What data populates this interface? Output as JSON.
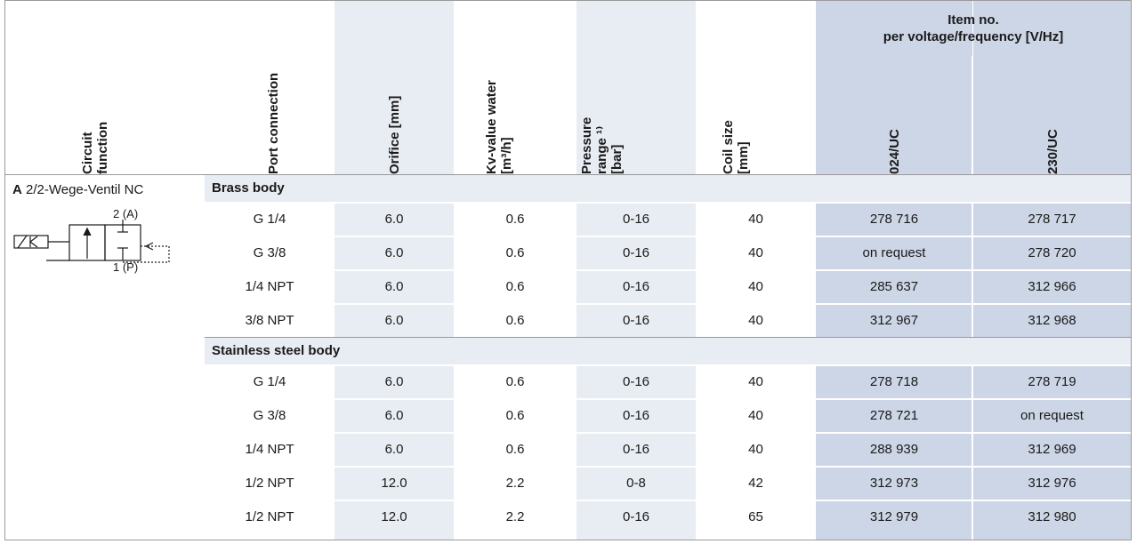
{
  "header": {
    "circuit_function": [
      "Circuit",
      "function"
    ],
    "port_connection": "Port connection",
    "orifice": "Orifice [mm]",
    "kv_value": [
      "Kv-value water",
      "[m³/h]"
    ],
    "pressure": [
      "Pressure",
      "range ¹⁾",
      "[bar]"
    ],
    "coil_size": [
      "Coil size",
      "[mm]"
    ],
    "item_no": [
      "Item no.",
      "per voltage/frequency [V/Hz]"
    ],
    "v024": "024/UC",
    "v230": "230/UC"
  },
  "circuit": {
    "letter": "A",
    "name": "2/2-Wege-Ventil NC",
    "port_a": "2 (A)",
    "port_p": "1 (P)"
  },
  "sections": [
    {
      "title": "Brass body",
      "rows": [
        {
          "port": "G 1/4",
          "orifice": "6.0",
          "kv": "0.6",
          "pressure": "0-16",
          "coil": "40",
          "v024": "278 716",
          "v230": "278 717"
        },
        {
          "port": "G 3/8",
          "orifice": "6.0",
          "kv": "0.6",
          "pressure": "0-16",
          "coil": "40",
          "v024": "on request",
          "v230": "278 720"
        },
        {
          "port": "1/4 NPT",
          "orifice": "6.0",
          "kv": "0.6",
          "pressure": "0-16",
          "coil": "40",
          "v024": "285 637",
          "v230": "312 966"
        },
        {
          "port": "3/8 NPT",
          "orifice": "6.0",
          "kv": "0.6",
          "pressure": "0-16",
          "coil": "40",
          "v024": "312 967",
          "v230": "312 968"
        }
      ]
    },
    {
      "title": "Stainless steel body",
      "rows": [
        {
          "port": "G 1/4",
          "orifice": "6.0",
          "kv": "0.6",
          "pressure": "0-16",
          "coil": "40",
          "v024": "278 718",
          "v230": "278 719"
        },
        {
          "port": "G 3/8",
          "orifice": "6.0",
          "kv": "0.6",
          "pressure": "0-16",
          "coil": "40",
          "v024": "278 721",
          "v230": "on request"
        },
        {
          "port": "1/4 NPT",
          "orifice": "6.0",
          "kv": "0.6",
          "pressure": "0-16",
          "coil": "40",
          "v024": "288 939",
          "v230": "312 969"
        },
        {
          "port": "1/2 NPT",
          "orifice": "12.0",
          "kv": "2.2",
          "pressure": "0-8",
          "coil": "42",
          "v024": "312 973",
          "v230": "312 976"
        },
        {
          "port": "1/2 NPT",
          "orifice": "12.0",
          "kv": "2.2",
          "pressure": "0-16",
          "coil": "65",
          "v024": "312 979",
          "v230": "312 980"
        }
      ]
    }
  ]
}
